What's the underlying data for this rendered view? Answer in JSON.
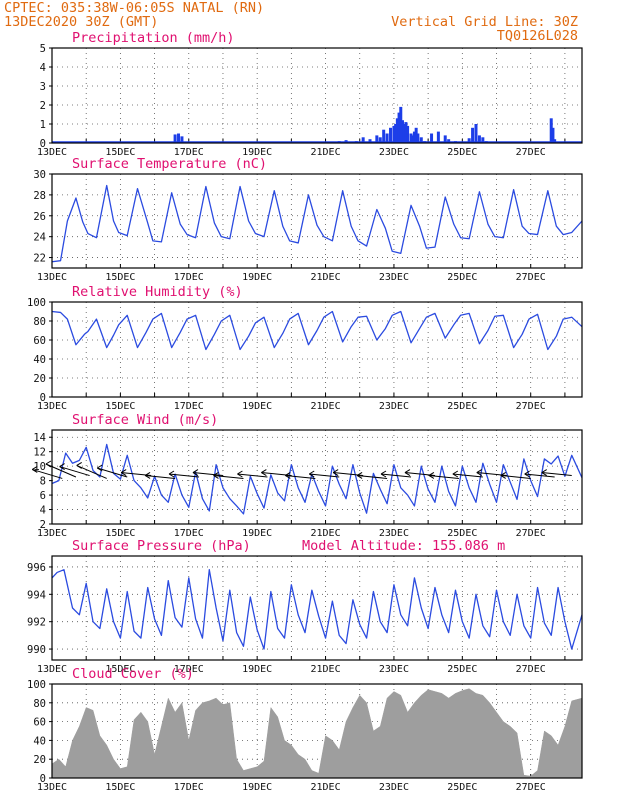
{
  "header": {
    "line1": "CPTEC:  035:38W-06:05S  NATAL (RN)",
    "line2": "13DEC2020 30Z (GMT)",
    "grid_line": "Vertical Grid Line: 30Z",
    "code": "TQ0126L028"
  },
  "x_ticks": [
    "13DEC",
    "15DEC",
    "17DEC",
    "19DEC",
    "21DEC",
    "23DEC",
    "25DEC",
    "27DEC"
  ],
  "colors": {
    "line": "#2b4be0",
    "bars": "#1d3ee8",
    "cloud": "#9e9e9e",
    "grid": "#555555",
    "header": "#e06a10",
    "title": "#e01070"
  },
  "chart_data": [
    {
      "type": "bar",
      "title": "Precipitation (mm/h)",
      "ylim": [
        0,
        5
      ],
      "yticks": [
        0,
        1,
        2,
        3,
        4,
        5
      ],
      "x_unit": "days since 13DEC 00Z",
      "x": [
        3.6,
        3.7,
        3.8,
        8.4,
        8.6,
        8.9,
        9.1,
        9.3,
        9.5,
        9.6,
        9.7,
        9.8,
        9.9,
        10.0,
        10.05,
        10.1,
        10.15,
        10.2,
        10.25,
        10.3,
        10.35,
        10.4,
        10.5,
        10.55,
        10.6,
        10.65,
        10.7,
        10.8,
        10.9,
        11.1,
        11.3,
        11.5,
        11.6,
        11.8,
        12.2,
        12.3,
        12.4,
        12.5,
        12.6,
        12.7,
        14.6,
        14.65,
        14.7
      ],
      "values": [
        0.45,
        0.5,
        0.35,
        0.1,
        0.15,
        0.1,
        0.3,
        0.2,
        0.4,
        0.3,
        0.7,
        0.5,
        0.8,
        0.9,
        1.0,
        1.3,
        1.6,
        1.9,
        1.2,
        1.0,
        1.1,
        0.9,
        0.5,
        0.4,
        0.6,
        0.8,
        0.5,
        0.3,
        0.1,
        0.5,
        0.6,
        0.4,
        0.2,
        0.1,
        0.25,
        0.8,
        1.0,
        0.4,
        0.3,
        0.1,
        1.3,
        0.8,
        0.2
      ]
    },
    {
      "type": "line",
      "title": "Surface Temperature (nC)",
      "ylim": [
        21,
        30
      ],
      "yticks": [
        22,
        24,
        26,
        28,
        30
      ],
      "x_unit": "days since 13DEC 00Z",
      "x": [
        0,
        0.25,
        0.45,
        0.7,
        0.9,
        1.05,
        1.3,
        1.6,
        1.8,
        1.95,
        2.2,
        2.5,
        2.8,
        2.95,
        3.2,
        3.5,
        3.75,
        3.95,
        4.2,
        4.5,
        4.75,
        4.95,
        5.2,
        5.5,
        5.75,
        5.95,
        6.2,
        6.5,
        6.75,
        6.95,
        7.2,
        7.5,
        7.75,
        7.95,
        8.2,
        8.5,
        8.75,
        8.95,
        9.2,
        9.5,
        9.75,
        9.95,
        10.2,
        10.5,
        10.75,
        10.95,
        11.2,
        11.5,
        11.75,
        11.95,
        12.2,
        12.5,
        12.75,
        12.95,
        13.2,
        13.5,
        13.75,
        13.95,
        14.2,
        14.5,
        14.75,
        14.95,
        15.2,
        15.5
      ],
      "values": [
        21.6,
        21.7,
        25.5,
        27.7,
        25.4,
        24.3,
        23.9,
        28.9,
        25.5,
        24.4,
        24.1,
        28.6,
        25.3,
        23.6,
        23.5,
        28.2,
        25.2,
        24.2,
        23.9,
        28.8,
        25.3,
        24.0,
        23.8,
        28.8,
        25.5,
        24.3,
        24.0,
        28.4,
        25.0,
        23.6,
        23.4,
        28.0,
        25.1,
        24.0,
        23.6,
        28.4,
        25.0,
        23.6,
        23.1,
        26.6,
        24.8,
        22.6,
        22.4,
        27.0,
        25.0,
        22.9,
        23.0,
        27.8,
        25.2,
        23.9,
        23.8,
        28.3,
        25.2,
        24.0,
        23.9,
        28.5,
        25.0,
        24.3,
        24.2,
        28.4,
        25.0,
        24.2,
        24.4,
        25.5
      ]
    },
    {
      "type": "line",
      "title": "Relative Humidity (%)",
      "ylim": [
        0,
        100
      ],
      "yticks": [
        0,
        20,
        40,
        60,
        80,
        100
      ],
      "x_unit": "days since 13DEC 00Z",
      "x": [
        0,
        0.25,
        0.45,
        0.7,
        0.95,
        1.05,
        1.3,
        1.6,
        1.8,
        1.95,
        2.2,
        2.5,
        2.75,
        2.95,
        3.2,
        3.5,
        3.75,
        3.95,
        4.2,
        4.5,
        4.75,
        4.95,
        5.2,
        5.5,
        5.75,
        5.95,
        6.2,
        6.5,
        6.75,
        6.95,
        7.2,
        7.5,
        7.75,
        7.95,
        8.2,
        8.5,
        8.75,
        8.95,
        9.2,
        9.5,
        9.75,
        9.95,
        10.2,
        10.5,
        10.75,
        10.95,
        11.2,
        11.5,
        11.75,
        11.95,
        12.2,
        12.5,
        12.75,
        12.95,
        13.2,
        13.5,
        13.75,
        13.95,
        14.2,
        14.5,
        14.75,
        14.95,
        15.2,
        15.5
      ],
      "values": [
        90,
        89,
        82,
        55,
        66,
        69,
        82,
        52,
        65,
        76,
        86,
        52,
        68,
        82,
        88,
        52,
        68,
        82,
        86,
        50,
        66,
        80,
        86,
        50,
        64,
        78,
        84,
        52,
        67,
        82,
        88,
        55,
        70,
        84,
        90,
        58,
        74,
        84,
        85,
        60,
        72,
        86,
        90,
        57,
        72,
        84,
        88,
        62,
        76,
        86,
        88,
        56,
        70,
        85,
        86,
        52,
        66,
        82,
        87,
        50,
        64,
        82,
        84,
        74
      ]
    },
    {
      "type": "line",
      "title": "Surface Wind (m/s)",
      "ylim": [
        2,
        15
      ],
      "yticks": [
        2,
        4,
        6,
        8,
        10,
        12,
        14
      ],
      "x_unit": "days since 13DEC 00Z",
      "x": [
        0,
        0.2,
        0.4,
        0.6,
        0.8,
        1.0,
        1.2,
        1.4,
        1.6,
        1.8,
        2.0,
        2.2,
        2.4,
        2.6,
        2.8,
        3.0,
        3.2,
        3.4,
        3.6,
        3.8,
        4.0,
        4.2,
        4.4,
        4.6,
        4.8,
        5.0,
        5.2,
        5.4,
        5.6,
        5.8,
        6.0,
        6.2,
        6.4,
        6.6,
        6.8,
        7.0,
        7.2,
        7.4,
        7.6,
        7.8,
        8.0,
        8.2,
        8.4,
        8.6,
        8.8,
        9.0,
        9.2,
        9.4,
        9.6,
        9.8,
        10.0,
        10.2,
        10.4,
        10.6,
        10.8,
        11.0,
        11.2,
        11.4,
        11.6,
        11.8,
        12.0,
        12.2,
        12.4,
        12.6,
        12.8,
        13.0,
        13.2,
        13.4,
        13.6,
        13.8,
        14.0,
        14.2,
        14.4,
        14.6,
        14.8,
        15.0,
        15.2,
        15.5
      ],
      "values": [
        7.6,
        8.0,
        11.8,
        10.4,
        10.8,
        12.6,
        9.4,
        8.5,
        13.0,
        9.0,
        8.2,
        11.5,
        8.0,
        7.0,
        5.6,
        8.6,
        6.0,
        5.0,
        8.9,
        6.0,
        4.3,
        9.2,
        5.5,
        3.8,
        10.2,
        7.0,
        5.5,
        4.5,
        3.4,
        8.6,
        6.2,
        4.2,
        8.8,
        6.3,
        5.2,
        10.2,
        7.0,
        5.0,
        8.9,
        6.5,
        4.5,
        10.0,
        7.5,
        5.5,
        10.2,
        6.3,
        3.5,
        9.0,
        6.8,
        4.8,
        10.2,
        7.0,
        6.0,
        4.5,
        10.0,
        6.8,
        5.0,
        10.0,
        6.5,
        4.5,
        10.0,
        7.0,
        5.0,
        10.4,
        7.5,
        5.0,
        10.2,
        7.8,
        5.4,
        11.0,
        8.0,
        5.8,
        11.0,
        10.3,
        11.4,
        8.6,
        11.5,
        8.4
      ]
    },
    {
      "type": "line",
      "title": "Surface Pressure (hPa)",
      "annotation": "Model Altitude: 155.086 m",
      "ylim": [
        989.2,
        996.8
      ],
      "yticks": [
        990,
        992,
        994,
        996
      ],
      "x_unit": "days since 13DEC 00Z",
      "x": [
        0,
        0.15,
        0.35,
        0.6,
        0.8,
        1.0,
        1.2,
        1.4,
        1.6,
        1.8,
        2.0,
        2.2,
        2.4,
        2.6,
        2.8,
        3.0,
        3.2,
        3.4,
        3.6,
        3.8,
        4.0,
        4.2,
        4.4,
        4.6,
        4.8,
        5.0,
        5.2,
        5.4,
        5.6,
        5.8,
        6.0,
        6.2,
        6.4,
        6.6,
        6.8,
        7.0,
        7.2,
        7.4,
        7.6,
        7.8,
        8.0,
        8.2,
        8.4,
        8.6,
        8.8,
        9.0,
        9.2,
        9.4,
        9.6,
        9.8,
        10.0,
        10.2,
        10.4,
        10.6,
        10.8,
        11.0,
        11.2,
        11.4,
        11.6,
        11.8,
        12.0,
        12.2,
        12.4,
        12.6,
        12.8,
        13.0,
        13.2,
        13.4,
        13.6,
        13.8,
        14.0,
        14.2,
        14.4,
        14.6,
        14.8,
        15.0,
        15.2,
        15.5
      ],
      "values": [
        995.2,
        995.6,
        995.8,
        993.0,
        992.5,
        994.8,
        992.0,
        991.5,
        994.4,
        992.0,
        990.8,
        994.2,
        991.3,
        990.8,
        994.5,
        992.2,
        991.0,
        995.0,
        992.3,
        991.6,
        995.2,
        992.2,
        990.8,
        995.8,
        993.0,
        990.6,
        994.3,
        991.2,
        990.2,
        993.8,
        991.4,
        990.0,
        994.2,
        991.5,
        990.8,
        994.7,
        992.5,
        991.2,
        994.3,
        992.4,
        990.8,
        993.5,
        991.0,
        990.4,
        993.6,
        991.8,
        990.8,
        994.2,
        992.0,
        991.2,
        994.7,
        992.5,
        991.7,
        995.2,
        993.0,
        991.5,
        994.5,
        992.5,
        991.2,
        994.3,
        992.0,
        990.8,
        994.0,
        991.7,
        990.9,
        994.3,
        992.0,
        991.0,
        994.0,
        991.7,
        990.8,
        994.5,
        991.9,
        991.0,
        994.5,
        992.0,
        990.0,
        992.5
      ]
    },
    {
      "type": "area",
      "title": "Cloud Cover (%)",
      "ylim": [
        0,
        100
      ],
      "yticks": [
        0,
        20,
        40,
        60,
        80,
        100
      ],
      "x_unit": "days since 13DEC 00Z",
      "x": [
        0,
        0.2,
        0.4,
        0.6,
        0.8,
        1.0,
        1.2,
        1.4,
        1.6,
        1.8,
        2.0,
        2.2,
        2.4,
        2.6,
        2.8,
        3.0,
        3.2,
        3.4,
        3.6,
        3.8,
        4.0,
        4.2,
        4.4,
        4.6,
        4.8,
        5.0,
        5.2,
        5.4,
        5.6,
        5.8,
        6.0,
        6.2,
        6.4,
        6.6,
        6.8,
        7.0,
        7.2,
        7.4,
        7.6,
        7.8,
        8.0,
        8.2,
        8.4,
        8.6,
        8.8,
        9.0,
        9.2,
        9.4,
        9.6,
        9.8,
        10.0,
        10.2,
        10.4,
        10.6,
        10.8,
        11.0,
        11.2,
        11.4,
        11.6,
        11.8,
        12.0,
        12.2,
        12.4,
        12.6,
        12.8,
        13.0,
        13.2,
        13.4,
        13.6,
        13.8,
        14.0,
        14.2,
        14.4,
        14.6,
        14.8,
        15.0,
        15.2,
        15.5
      ],
      "values": [
        15,
        20,
        12,
        40,
        55,
        75,
        72,
        45,
        35,
        20,
        10,
        12,
        62,
        70,
        60,
        25,
        55,
        85,
        70,
        80,
        40,
        72,
        80,
        82,
        85,
        78,
        80,
        20,
        8,
        10,
        12,
        18,
        75,
        65,
        40,
        35,
        25,
        20,
        8,
        5,
        45,
        40,
        30,
        60,
        75,
        88,
        80,
        50,
        55,
        85,
        92,
        88,
        70,
        80,
        88,
        94,
        92,
        90,
        85,
        90,
        93,
        95,
        90,
        88,
        80,
        70,
        60,
        55,
        48,
        3,
        2,
        8,
        50,
        45,
        35,
        55,
        82,
        85
      ]
    }
  ]
}
